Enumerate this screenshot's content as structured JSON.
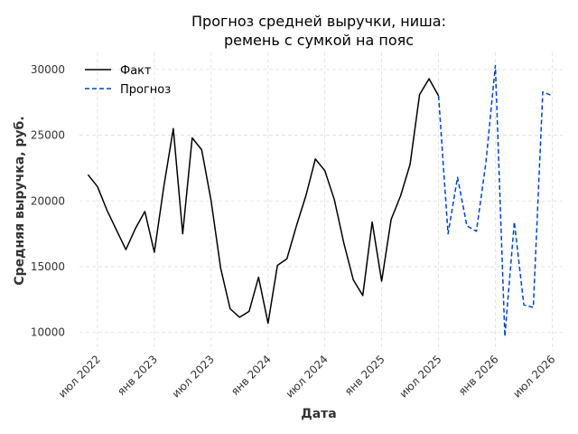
{
  "chart_data": {
    "type": "line",
    "title_lines": [
      "Прогноз средней выручки, ниша:",
      "ремень с сумкой на пояс"
    ],
    "xlabel": "Дата",
    "ylabel": "Средняя выручка, руб.",
    "ylim": [
      8600,
      31300
    ],
    "yticks": [
      10000,
      15000,
      20000,
      25000,
      30000
    ],
    "yticks_labels": [
      "10000",
      "15000",
      "20000",
      "25000",
      "30000"
    ],
    "xticks": [
      "2022-07",
      "2023-01",
      "2023-07",
      "2024-01",
      "2024-07",
      "2025-01",
      "2025-07",
      "2026-01",
      "2026-07"
    ],
    "xticks_labels": [
      "июл 2022",
      "янв 2023",
      "июл 2023",
      "янв 2024",
      "июл 2024",
      "янв 2025",
      "июл 2025",
      "янв 2026",
      "июл 2026"
    ],
    "grid": true,
    "legend_position": "top-left",
    "series": [
      {
        "name": "Факт",
        "style": "solid",
        "color": "#000000",
        "points": [
          [
            "2022-06",
            22000
          ],
          [
            "2022-07",
            21100
          ],
          [
            "2022-08",
            19300
          ],
          [
            "2022-09",
            17800
          ],
          [
            "2022-10",
            16300
          ],
          [
            "2022-11",
            17900
          ],
          [
            "2022-12",
            19200
          ],
          [
            "2023-01",
            16100
          ],
          [
            "2023-02",
            21100
          ],
          [
            "2023-03",
            25500
          ],
          [
            "2023-04",
            17500
          ],
          [
            "2023-05",
            24800
          ],
          [
            "2023-06",
            23900
          ],
          [
            "2023-07",
            20000
          ],
          [
            "2023-08",
            14900
          ],
          [
            "2023-09",
            11800
          ],
          [
            "2023-10",
            11150
          ],
          [
            "2023-11",
            11600
          ],
          [
            "2023-12",
            14200
          ],
          [
            "2024-01",
            10700
          ],
          [
            "2024-02",
            15100
          ],
          [
            "2024-03",
            15600
          ],
          [
            "2024-04",
            18100
          ],
          [
            "2024-05",
            20400
          ],
          [
            "2024-06",
            23200
          ],
          [
            "2024-07",
            22300
          ],
          [
            "2024-08",
            20100
          ],
          [
            "2024-09",
            16800
          ],
          [
            "2024-10",
            14000
          ],
          [
            "2024-11",
            12800
          ],
          [
            "2024-12",
            18400
          ],
          [
            "2025-01",
            13900
          ],
          [
            "2025-02",
            18600
          ],
          [
            "2025-03",
            20400
          ],
          [
            "2025-04",
            22800
          ],
          [
            "2025-05",
            28100
          ],
          [
            "2025-06",
            29300
          ],
          [
            "2025-07",
            28000
          ]
        ]
      },
      {
        "name": "Прогноз",
        "style": "dashed",
        "color": "#0044cc",
        "points": [
          [
            "2025-07",
            28000
          ],
          [
            "2025-08",
            17500
          ],
          [
            "2025-09",
            21800
          ],
          [
            "2025-10",
            18100
          ],
          [
            "2025-11",
            17700
          ],
          [
            "2025-12",
            22900
          ],
          [
            "2026-01",
            30300
          ],
          [
            "2026-02",
            9700
          ],
          [
            "2026-03",
            18400
          ],
          [
            "2026-04",
            12100
          ],
          [
            "2026-05",
            11900
          ],
          [
            "2026-06",
            28300
          ],
          [
            "2026-07",
            28000
          ]
        ]
      }
    ]
  }
}
